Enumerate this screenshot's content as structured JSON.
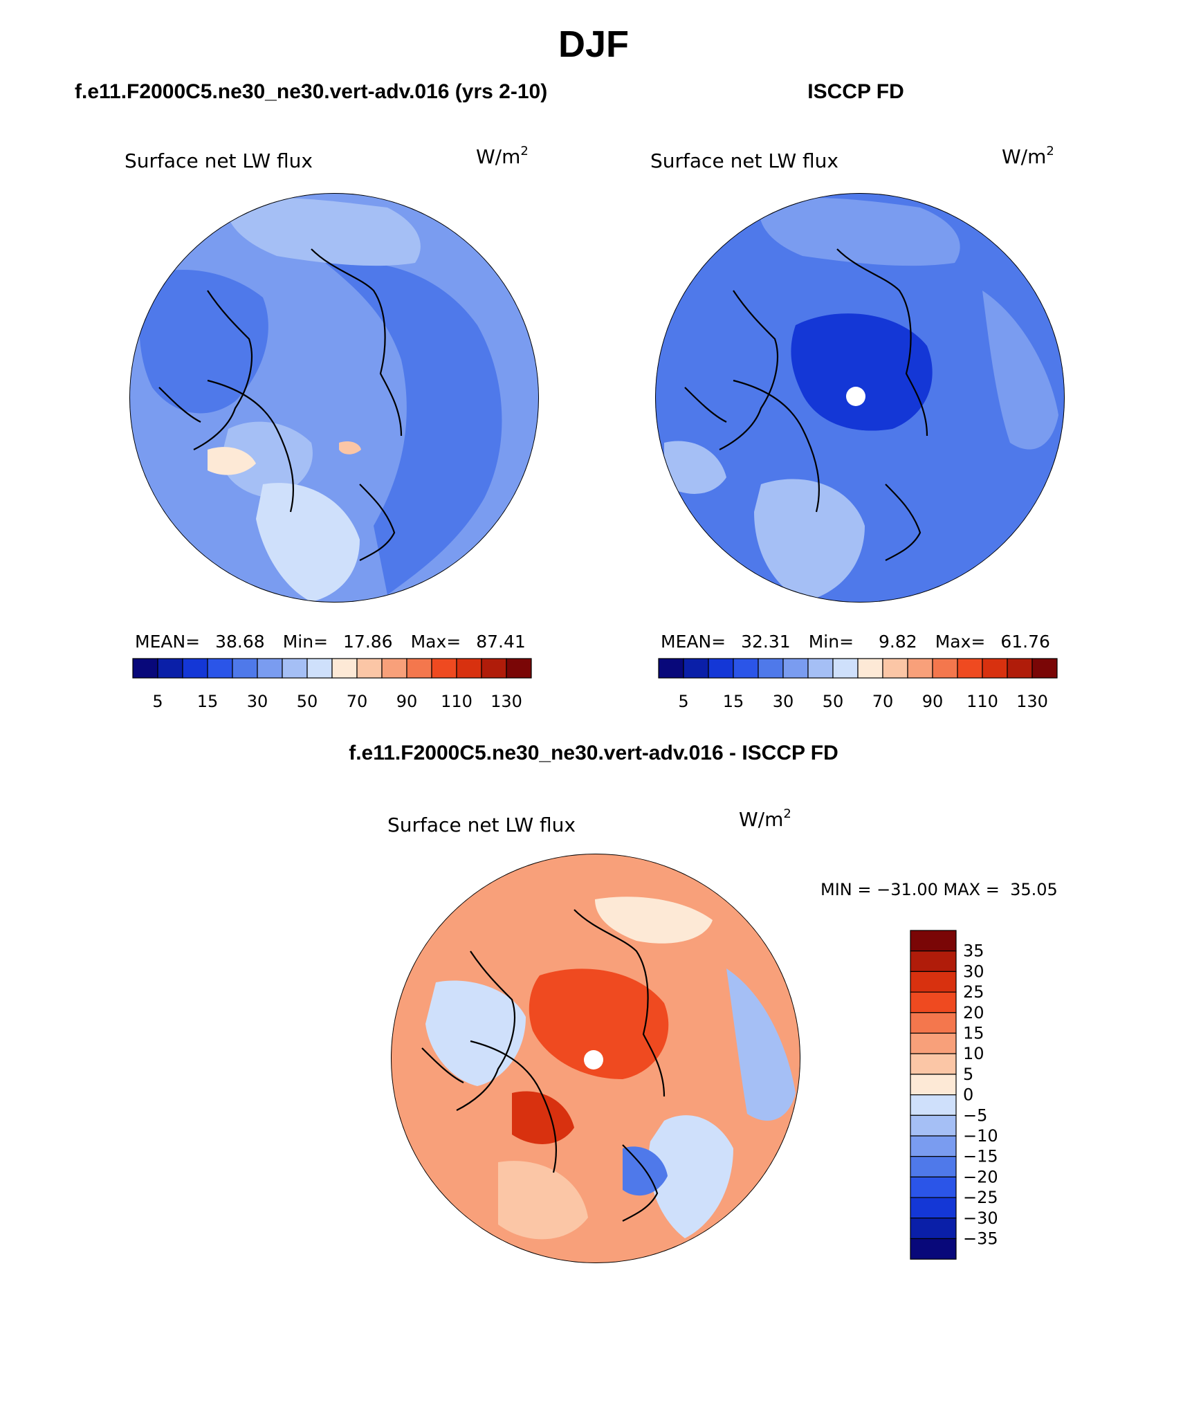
{
  "page": {
    "title": "DJF",
    "header_left": "f.e11.F2000C5.ne30_ne30.vert-adv.016 (yrs 2-10)",
    "header_right": "ISCCP FD",
    "header_diff": "f.e11.F2000C5.ne30_ne30.vert-adv.016 - ISCCP FD"
  },
  "panels": {
    "model": {
      "variable": "Surface net LW flux",
      "units_base": "W/m",
      "units_exp": "2",
      "mean_label": "MEAN=",
      "mean_value": "38.68",
      "min_label": "Min=",
      "min_value": "17.86",
      "max_label": "Max=",
      "max_value": "87.41"
    },
    "obs": {
      "variable": "Surface net LW flux",
      "units_base": "W/m",
      "units_exp": "2",
      "mean_label": "MEAN=",
      "mean_value": "32.31",
      "min_label": "Min=",
      "min_value": "9.82",
      "max_label": "Max=",
      "max_value": "61.76"
    },
    "diff": {
      "variable": "Surface net LW flux",
      "units_base": "W/m",
      "units_exp": "2",
      "minmax_text": "MIN = −31.00 MAX =  35.05"
    }
  },
  "colorbars": {
    "abs_ticks": [
      "5",
      "15",
      "30",
      "50",
      "70",
      "90",
      "110",
      "130"
    ],
    "abs_colors": [
      "#08087a",
      "#0a1fa8",
      "#1437d6",
      "#2b55e8",
      "#4f79ea",
      "#7a9cf0",
      "#a5bff5",
      "#cfe0fb",
      "#fde9d6",
      "#fbc6a6",
      "#f8a07a",
      "#f4774d",
      "#ef4a20",
      "#d8310f",
      "#b01c0a",
      "#7a0606"
    ],
    "diff_ticks": [
      "35",
      "30",
      "25",
      "20",
      "15",
      "10",
      "5",
      "0",
      "−5",
      "−10",
      "−15",
      "−20",
      "−25",
      "−30",
      "−35"
    ],
    "diff_colors": [
      "#7a0606",
      "#b01c0a",
      "#d8310f",
      "#ef4a20",
      "#f4774d",
      "#f8a07a",
      "#fbc6a6",
      "#fde9d6",
      "#cfe0fb",
      "#a5bff5",
      "#7a9cf0",
      "#4f79ea",
      "#2b55e8",
      "#1437d6",
      "#0a1fa8",
      "#08087a"
    ]
  },
  "map_colors": {
    "model_base": "#7a9cf0",
    "obs_base": "#4f79ea",
    "diff_base": "#f8a07a",
    "coast": "#000000",
    "pole_mask": "#ffffff"
  }
}
